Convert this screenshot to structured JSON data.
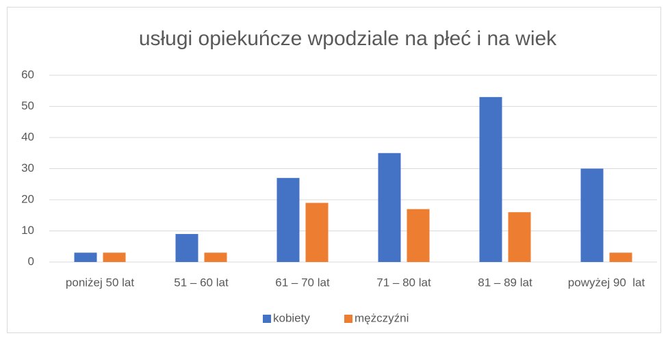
{
  "chart_data": {
    "type": "bar",
    "title": "usługi opiekuńcze wpodziale na płeć i na wiek",
    "categories": [
      "poniżej 50 lat",
      "51 – 60 lat",
      "61 – 70 lat",
      "71 – 80 lat",
      "81 – 89 lat",
      "powyżej 90  lat"
    ],
    "series": [
      {
        "name": "kobiety",
        "color": "#4472c4",
        "values": [
          3,
          9,
          27,
          35,
          53,
          30
        ]
      },
      {
        "name": "mężczyźni",
        "color": "#ed7d31",
        "values": [
          3,
          3,
          19,
          17,
          16,
          3
        ]
      }
    ],
    "ylim": [
      0,
      60
    ],
    "yticks": [
      0,
      10,
      20,
      30,
      40,
      50,
      60
    ],
    "grid": true,
    "legend": "bottom"
  }
}
